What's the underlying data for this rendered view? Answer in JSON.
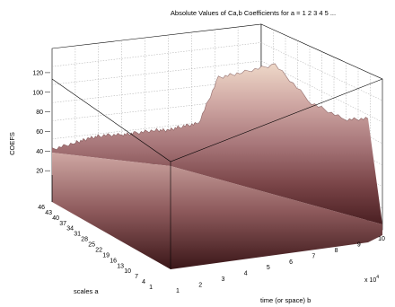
{
  "chart_data": {
    "type": "surface",
    "title": "Absolute Values of Ca,b Coefficients for a =  1 2 3 4 5 ...",
    "zlabel": "COEFS",
    "ylabel": "scales a",
    "xlabel": "time (or space) b",
    "x_exponent": "x 10",
    "x_exponent_power": "4",
    "z_ticks": [
      "20",
      "40",
      "60",
      "80",
      "100",
      "120"
    ],
    "y_ticks": [
      "1",
      "4",
      "7",
      "10",
      "13",
      "16",
      "19",
      "22",
      "25",
      "28",
      "31",
      "34",
      "37",
      "40",
      "43",
      "46"
    ],
    "x_ticks": [
      "1",
      "2",
      "3",
      "4",
      "5",
      "6",
      "7",
      "8",
      "9",
      "10"
    ],
    "zlim": [
      0,
      130
    ],
    "xlim": [
      0.5,
      10
    ],
    "ylim": [
      1,
      48
    ],
    "grid": true,
    "colormap": [
      "#4a1f22",
      "#7a4548",
      "#a8777a",
      "#cfa7a3",
      "#eed8c8"
    ],
    "surface_profile_at_large_scale": {
      "b_x1e4": [
        0.5,
        1.2,
        1.6,
        2.0,
        2.6,
        3.0,
        3.6,
        4.0,
        4.4,
        4.9,
        5.5,
        6.2,
        7.2,
        8.3,
        9.3,
        10.0
      ],
      "coefs": [
        50,
        55,
        58,
        60,
        58,
        58,
        59,
        57,
        60,
        61,
        112,
        115,
        120,
        70,
        46,
        44
      ]
    }
  }
}
